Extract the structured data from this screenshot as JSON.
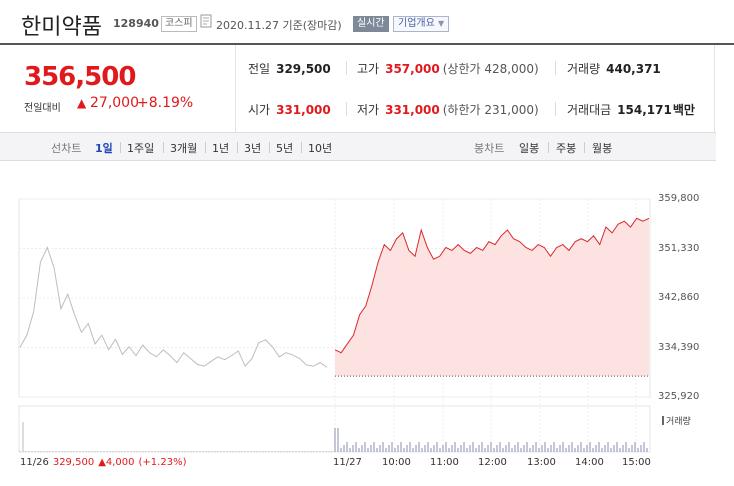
{
  "header": {
    "stock_name": "한미약품",
    "stock_code": "128940",
    "market": "코스피",
    "date": "2020.11.27 기준(장마감)",
    "realtime_button": "실시간",
    "company_overview_button": "기업개요"
  },
  "price": {
    "current": "356,500",
    "change_label": "전일대비",
    "change_arrow": "▲",
    "change_value": "27,000",
    "change_percent": "+8.19%"
  },
  "stats": {
    "prev_close": {
      "label": "전일",
      "value": "329,500"
    },
    "high": {
      "label": "고가",
      "value": "357,000",
      "sub": "(상한가 428,000)"
    },
    "volume": {
      "label": "거래량",
      "value": "440,371"
    },
    "open": {
      "label": "시가",
      "value": "331,000"
    },
    "low": {
      "label": "저가",
      "value": "331,000",
      "sub": "(하한가 231,000)"
    },
    "turnover": {
      "label": "거래대금",
      "value": "154,171",
      "unit": "백만"
    }
  },
  "period_bar": {
    "line_chart_label": "선차트",
    "periods": [
      "1일",
      "1주일",
      "3개월",
      "1년",
      "3년",
      "5년",
      "10년"
    ],
    "selected_period": "1일",
    "candle_chart_label": "봉차트",
    "candle_periods": [
      "일봉",
      "주봉",
      "월봉"
    ]
  },
  "chart_data": {
    "type": "area",
    "y_ticks": [
      "359,800",
      "351,330",
      "342,860",
      "334,390",
      "325,920"
    ],
    "ylim": [
      325920,
      359800
    ],
    "x_ticks": [
      "11/27",
      "10:00",
      "11:00",
      "12:00",
      "13:00",
      "14:00",
      "15:00"
    ],
    "prev_day": {
      "label": "11/26",
      "close": "329,500",
      "change_arrow": "▲",
      "change": "4,000",
      "change_percent": "(+1.23%)",
      "values": [
        334390,
        336500,
        340500,
        349000,
        351500,
        348000,
        341000,
        343500,
        340000,
        337000,
        338500,
        335000,
        336500,
        334000,
        335800,
        333200,
        334500,
        333000,
        334800,
        333500,
        332800,
        334000,
        333000,
        331800,
        333500,
        332500,
        331500,
        331200,
        332000,
        332800,
        332300,
        333000,
        333800,
        331200,
        332500,
        335200,
        335700,
        334500,
        332800,
        333500,
        333100,
        332500,
        331400,
        331200,
        331800,
        331000
      ]
    },
    "today": {
      "values": [
        334000,
        333500,
        335000,
        336500,
        340000,
        341500,
        345000,
        349000,
        352000,
        351000,
        353000,
        354000,
        351000,
        350000,
        354500,
        351500,
        349500,
        350000,
        351500,
        351000,
        352000,
        351000,
        350500,
        351500,
        351000,
        352500,
        352000,
        353500,
        354500,
        353000,
        352500,
        351500,
        351000,
        352000,
        351500,
        350000,
        351500,
        352000,
        351000,
        352500,
        353000,
        352500,
        353500,
        352000,
        355000,
        354000,
        355500,
        356000,
        355000,
        356500,
        356000,
        356500
      ],
      "baseline": 329500
    },
    "volume_label": "거래량"
  }
}
